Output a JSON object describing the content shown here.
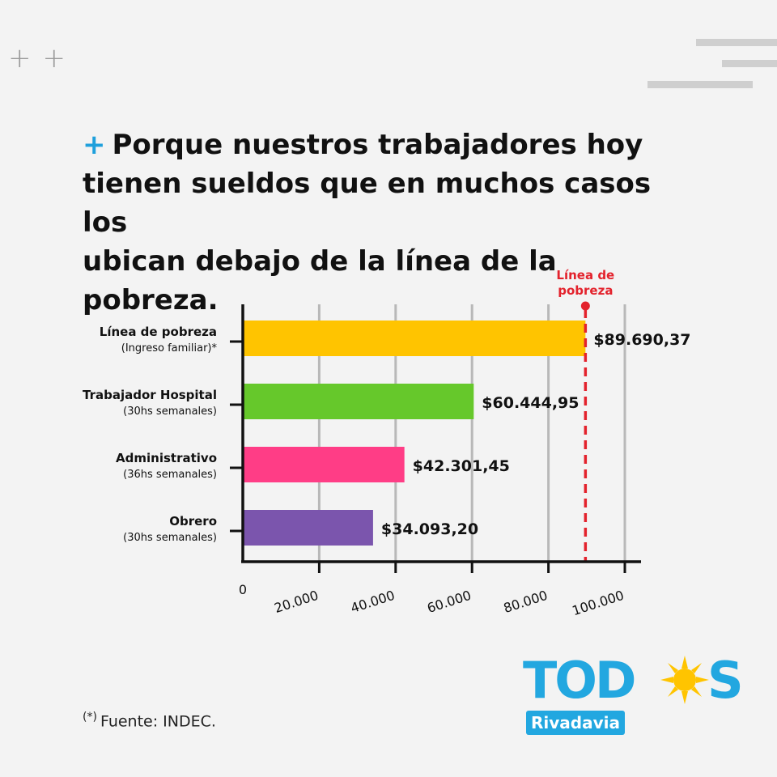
{
  "headline": {
    "plus": "+",
    "line1": "Porque nuestros trabajadores hoy",
    "line2": "tienen sueldos que en muchos casos los",
    "line3": "ubican debajo de la línea de la pobreza."
  },
  "chart_data": {
    "type": "bar",
    "orientation": "horizontal",
    "categories": [
      {
        "label": "Línea de pobreza",
        "sublabel": "(Ingreso familiar)*"
      },
      {
        "label": "Trabajador Hospital",
        "sublabel": "(30hs semanales)"
      },
      {
        "label": "Administrativo",
        "sublabel": "(36hs semanales)"
      },
      {
        "label": "Obrero",
        "sublabel": "(30hs semanales)"
      }
    ],
    "values": [
      89690.37,
      60444.95,
      42301.45,
      34093.2
    ],
    "value_labels": [
      "$89.690,37",
      "$60.444,95",
      "$42.301,45",
      "$34.093,20"
    ],
    "colors": [
      "#ffc400",
      "#66c82b",
      "#ff3d86",
      "#7b55ad"
    ],
    "xlim": [
      0,
      100000
    ],
    "xticks": [
      0,
      20000,
      40000,
      60000,
      80000,
      100000
    ],
    "xtick_labels": [
      "0",
      "20.000",
      "40.000",
      "60.000",
      "80.000",
      "100.000"
    ],
    "grid": true,
    "reference_line": {
      "value": 89690.37,
      "label_line1": "Línea de",
      "label_line2": "pobreza",
      "color": "#e3222c"
    }
  },
  "source": {
    "asterisk": "(*)",
    "text": "Fuente: INDEC."
  },
  "logo": {
    "word_start": "TOD",
    "word_end": "S",
    "badge": "Rivadavia",
    "color": "#22a7e0",
    "sun_color": "#ffc400"
  }
}
